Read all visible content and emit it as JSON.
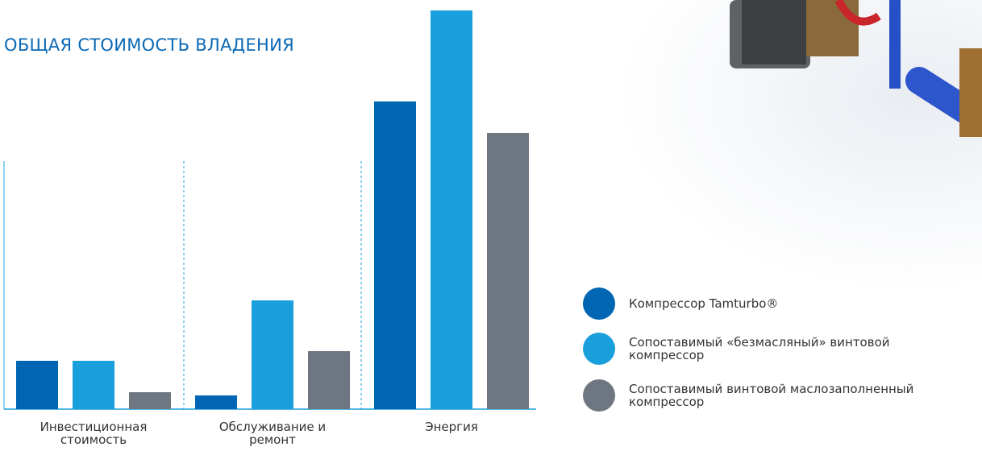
{
  "chart_data": {
    "type": "bar",
    "title": "ОБЩАЯ СТОИМОСТЬ ВЛАДЕНИЯ",
    "categories": [
      "Инвестиционная стоимость",
      "Обслуживание и ремонт",
      "Энергия"
    ],
    "series": [
      {
        "name": "Компрессор Tamturbo®",
        "color": "#0066b3",
        "values": [
          60,
          17,
          382
        ]
      },
      {
        "name": "Сопоставимый «безмасляный» винтовой компрессор",
        "color": "#199fdb",
        "values": [
          60,
          135,
          495
        ]
      },
      {
        "name": "Сопоставимый винтовой маслозаполненный компрессор",
        "color": "#6d7681",
        "values": [
          21,
          72,
          343
        ]
      }
    ]
  }
}
